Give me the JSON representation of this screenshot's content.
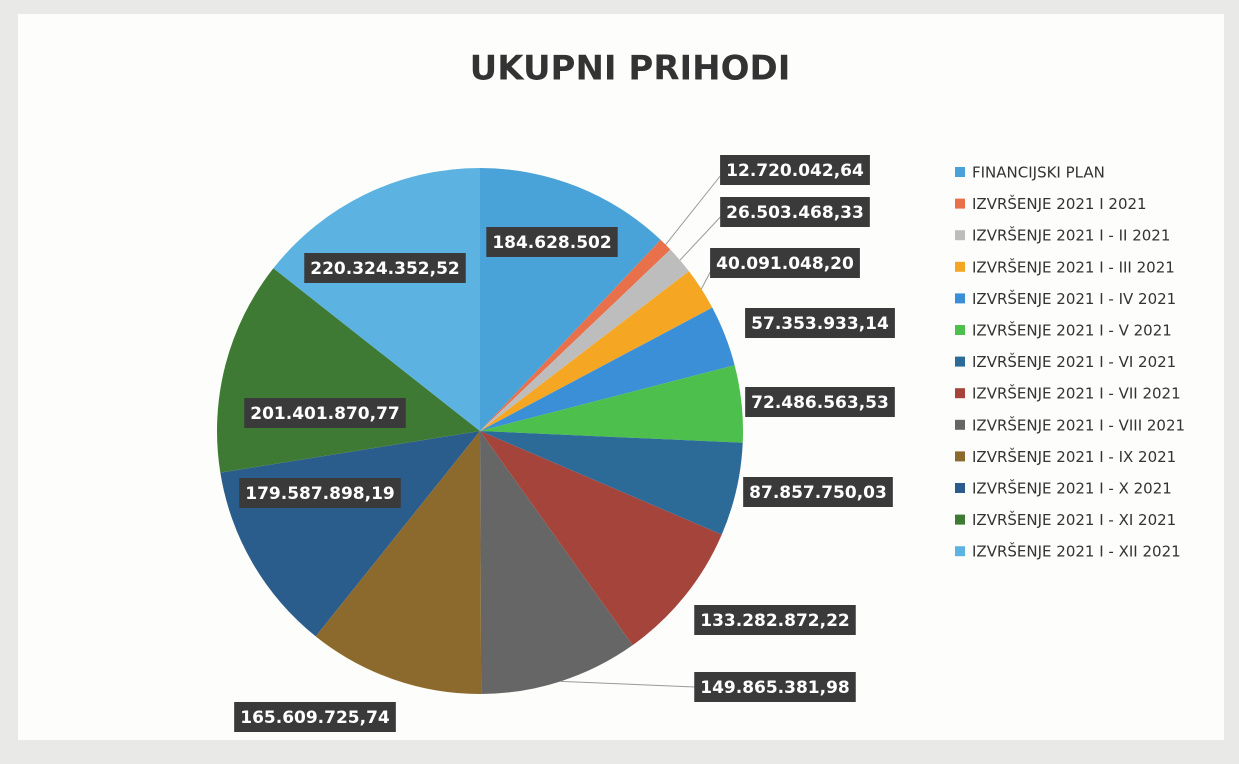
{
  "chart_data": {
    "type": "pie",
    "title": "UKUPNI PRIHODI",
    "categories": [
      "FINANCIJSKI PLAN",
      "IZVRŠENJE 2021 I 2021",
      "IZVRŠENJE 2021 I - II 2021",
      "IZVRŠENJE 2021 I - III 2021",
      "IZVRŠENJE 2021 I - IV 2021",
      "IZVRŠENJE 2021 I - V 2021",
      "IZVRŠENJE 2021 I - VI 2021",
      "IZVRŠENJE 2021 I - VII 2021",
      "IZVRŠENJE 2021 I - VIII 2021",
      "IZVRŠENJE 2021 I - IX 2021",
      "IZVRŠENJE 2021 I - X 2021",
      "IZVRŠENJE 2021 I - XI 2021",
      "IZVRŠENJE 2021 I - XII 2021"
    ],
    "values": [
      184628502,
      12720042.64,
      26503468.33,
      40091048.2,
      57353933.14,
      72486563.53,
      87857750.03,
      133282872.22,
      149865381.98,
      165609725.74,
      179587898.19,
      201401870.77,
      220324352.52
    ],
    "value_labels": [
      "184.628.502",
      "12.720.042,64",
      "26.503.468,33",
      "40.091.048,20",
      "57.353.933,14",
      "72.486.563,53",
      "87.857.750,03",
      "133.282.872,22",
      "149.865.381,98",
      "165.609.725,74",
      "179.587.898,19",
      "201.401.870,77",
      "220.324.352,52"
    ],
    "colors": [
      "#4aa3d8",
      "#e8704a",
      "#bdbdbd",
      "#f5a623",
      "#3b8fd6",
      "#4cbf4c",
      "#2c6b98",
      "#a5443a",
      "#666666",
      "#8c6a2e",
      "#2a5d8c",
      "#3f7a34",
      "#5cb3e2"
    ],
    "legend": "right"
  }
}
